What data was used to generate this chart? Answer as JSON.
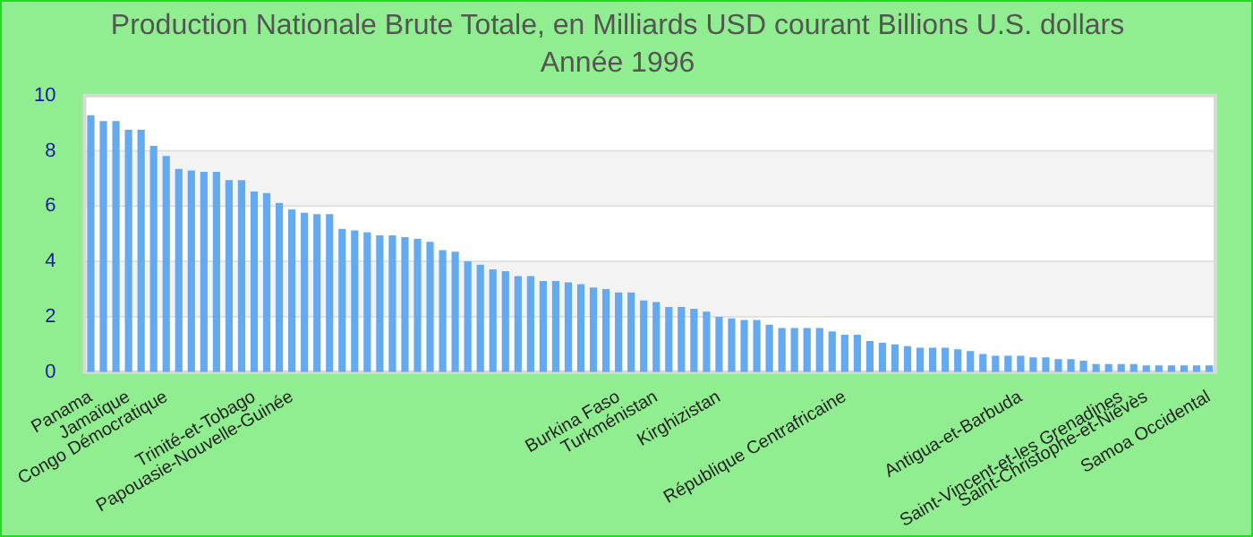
{
  "chart_data": {
    "type": "bar",
    "title": "Production Nationale Brute Totale, en Milliards USD courant Billions U.S. dollars",
    "subtitle": "Année 1996",
    "categories": [
      "Panama",
      null,
      null,
      "Jamaïque",
      null,
      null,
      "Congo Démocratique",
      null,
      null,
      null,
      null,
      null,
      null,
      "Trinité-et-Tobago",
      null,
      null,
      "Papouasie-Nouvelle-Guinée",
      null,
      null,
      null,
      null,
      null,
      null,
      null,
      null,
      null,
      null,
      null,
      null,
      null,
      null,
      null,
      null,
      null,
      null,
      null,
      null,
      null,
      null,
      null,
      null,
      null,
      "Burkina Faso",
      null,
      null,
      "Turkménistan",
      null,
      null,
      null,
      null,
      "Kirghizistan",
      null,
      null,
      null,
      null,
      null,
      null,
      null,
      null,
      null,
      "République Centrafricaine",
      null,
      null,
      null,
      null,
      null,
      null,
      null,
      null,
      null,
      null,
      null,
      null,
      null,
      "Antigua-et-Barbuda",
      null,
      null,
      null,
      null,
      null,
      null,
      null,
      "Saint-Vincent-et-les Grenadines",
      null,
      "Saint-Christophe-et-Niévès",
      null,
      null,
      null,
      null,
      "Samoa Occidental"
    ],
    "values": [
      9.29,
      9.08,
      9.08,
      8.76,
      8.76,
      8.18,
      7.82,
      7.35,
      7.29,
      7.24,
      7.24,
      6.94,
      6.94,
      6.53,
      6.47,
      6.12,
      5.88,
      5.76,
      5.71,
      5.71,
      5.18,
      5.12,
      5.06,
      4.94,
      4.94,
      4.88,
      4.82,
      4.71,
      4.41,
      4.35,
      4.0,
      3.88,
      3.71,
      3.65,
      3.47,
      3.47,
      3.29,
      3.29,
      3.24,
      3.18,
      3.06,
      3.0,
      2.88,
      2.88,
      2.59,
      2.53,
      2.35,
      2.35,
      2.29,
      2.18,
      2.0,
      1.94,
      1.88,
      1.88,
      1.71,
      1.59,
      1.59,
      1.59,
      1.59,
      1.47,
      1.35,
      1.35,
      1.12,
      1.06,
      1.0,
      0.94,
      0.88,
      0.88,
      0.88,
      0.82,
      0.76,
      0.65,
      0.59,
      0.59,
      0.59,
      0.53,
      0.53,
      0.47,
      0.47,
      0.41,
      0.29,
      0.29,
      0.29,
      0.29,
      0.24,
      0.24,
      0.24,
      0.24,
      0.24,
      0.24
    ],
    "color": "#64aaf0",
    "ylim": [
      0,
      10
    ],
    "yticks": [
      0,
      2,
      4,
      6,
      8,
      10
    ],
    "grid": true
  }
}
